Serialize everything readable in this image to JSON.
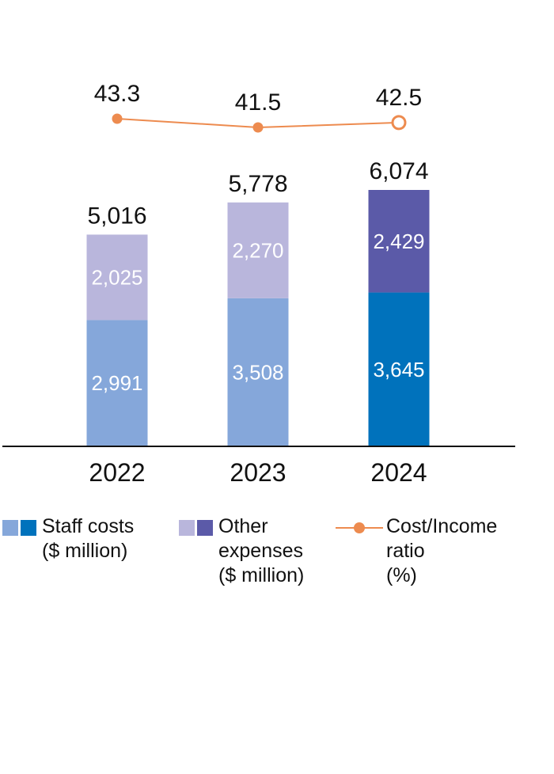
{
  "colors": {
    "staff_light": "#85a7da",
    "staff_dark": "#0072bc",
    "other_light": "#b9b6dc",
    "other_dark": "#5b5aa8",
    "ratio": "#ed8b4f",
    "axis": "#111111",
    "text": "#111111",
    "inner_label": "#ffffff"
  },
  "chart_data": {
    "type": "bar",
    "stacked": true,
    "categories": [
      "2022",
      "2023",
      "2024"
    ],
    "series": [
      {
        "name": "Staff costs ($ million)",
        "values": [
          2991,
          3508,
          3645
        ],
        "labels": [
          "2,991",
          "3,508",
          "3,645"
        ]
      },
      {
        "name": "Other expenses ($ million)",
        "values": [
          2025,
          2270,
          2429
        ],
        "labels": [
          "2,025",
          "2,270",
          "2,429"
        ]
      }
    ],
    "totals": [
      5016,
      5778,
      6074
    ],
    "total_labels": [
      "5,016",
      "5,778",
      "6,074"
    ],
    "line_series": {
      "name": "Cost/Income ratio (%)",
      "values": [
        43.3,
        41.5,
        42.5
      ],
      "labels": [
        "43.3",
        "41.5",
        "42.5"
      ]
    },
    "highlight_last": true,
    "ylim": [
      0,
      6500
    ],
    "ratio_range": [
      40,
      44
    ],
    "grid": false
  },
  "legend": {
    "staff": "Staff costs\n($ million)",
    "other": "Other\nexpenses\n($ million)",
    "ratio": "Cost/Income\nratio\n(%)"
  }
}
